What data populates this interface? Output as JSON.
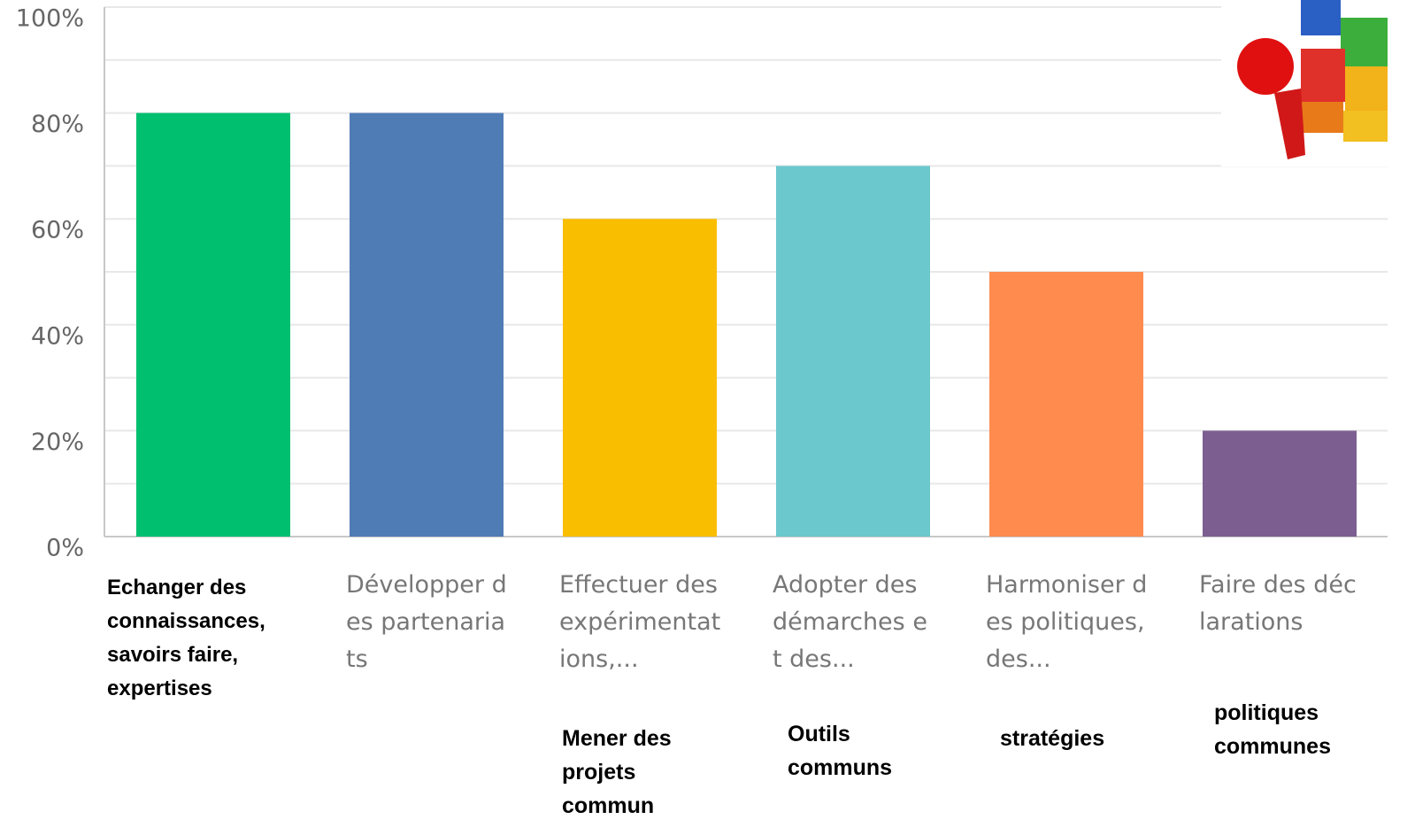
{
  "chart_data": {
    "type": "bar",
    "categories": [
      "Echanger des connaissances, savoirs faire, expertises",
      "Développer des partenariats",
      "Effectuer des expérimentations,...",
      "Adopter des démarches et des...",
      "Harmoniser des politiques, des...",
      "Faire des déclarations"
    ],
    "values": [
      80,
      80,
      60,
      70,
      50,
      20
    ],
    "colors": [
      "#00bf6f",
      "#507cb6",
      "#f9be00",
      "#6bc8cd",
      "#ff8b4f",
      "#7d5e90"
    ],
    "ylim": [
      0,
      100
    ],
    "yticks": [
      {
        "value": 0,
        "label": "0%"
      },
      {
        "value": 20,
        "label": "20%"
      },
      {
        "value": 40,
        "label": "40%"
      },
      {
        "value": 60,
        "label": "60%"
      },
      {
        "value": 80,
        "label": "80%"
      },
      {
        "value": 100,
        "label": "100%"
      }
    ],
    "minor_grid": [
      10,
      30,
      50,
      70,
      90
    ],
    "grid": true,
    "annotations": [
      "Mener des projets commun",
      "Outils communs",
      "stratégies",
      "politiques communes"
    ]
  }
}
